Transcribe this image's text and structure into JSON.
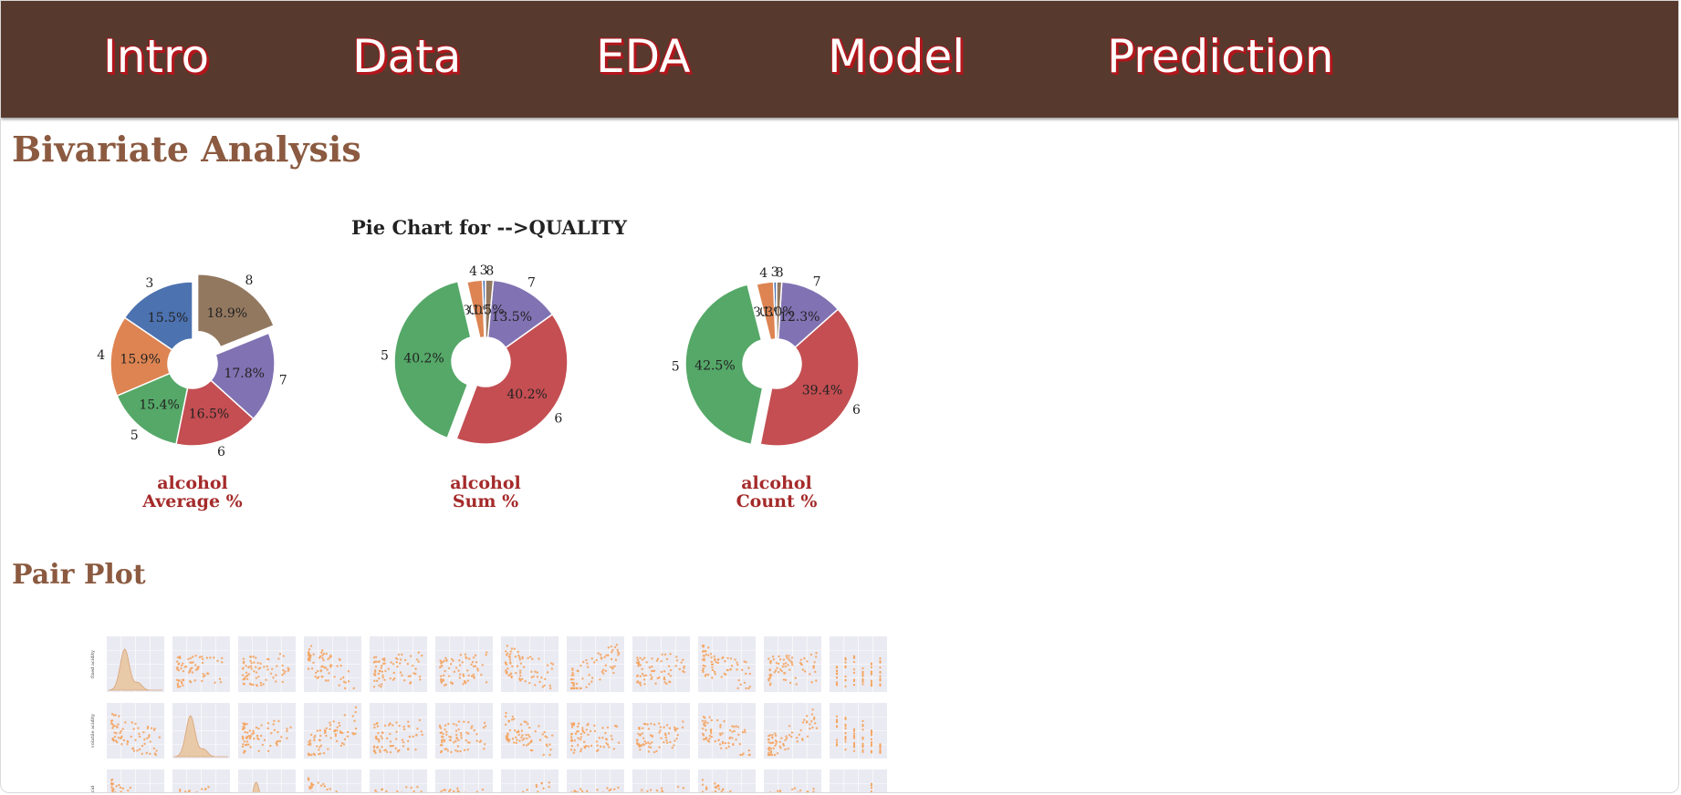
{
  "nav": {
    "items": [
      {
        "label": "Intro"
      },
      {
        "label": "Data"
      },
      {
        "label": "EDA"
      },
      {
        "label": "Model"
      },
      {
        "label": "Prediction"
      }
    ]
  },
  "sections": {
    "bivariate_title": "Bivariate Analysis",
    "pair_plot_title": "Pair Plot"
  },
  "pie_suptitle": "Pie Chart for -->QUALITY",
  "colors": {
    "nav_bg": "#58392e",
    "text_shadow": "#b3151b",
    "section_title": "#8b5a40",
    "caption": "#a52a2a",
    "quality_3": "#4c72b0",
    "quality_4": "#dd8452",
    "quality_5": "#55a868",
    "quality_6": "#c44e52",
    "quality_7": "#8172b3",
    "quality_8": "#937860",
    "scatter_point": "#f4a460",
    "panel_bg": "#eaeaf2"
  },
  "chart_data": [
    {
      "type": "pie",
      "caption_line1": "alcohol",
      "caption_line2": "Average %",
      "categories": [
        "3",
        "4",
        "5",
        "6",
        "7",
        "8"
      ],
      "values": [
        15.5,
        15.9,
        15.4,
        16.5,
        17.8,
        18.9
      ],
      "labels": [
        "15.5%",
        "15.9%",
        "15.4%",
        "16.5%",
        "17.8%",
        "18.9%"
      ],
      "explode_max": true
    },
    {
      "type": "pie",
      "caption_line1": "alcohol",
      "caption_line2": "Sum %",
      "categories": [
        "3",
        "4",
        "5",
        "6",
        "7",
        "8"
      ],
      "values": [
        0.6,
        3.0,
        40.2,
        40.2,
        13.5,
        1.5
      ],
      "labels": [
        "0.6%",
        "3.0%",
        "40.2%",
        "40.2%",
        "13.5%",
        "1.5%"
      ],
      "explode_max": true
    },
    {
      "type": "pie",
      "caption_line1": "alcohol",
      "caption_line2": "Count %",
      "categories": [
        "3",
        "4",
        "5",
        "6",
        "7",
        "8"
      ],
      "values": [
        0.6,
        3.3,
        42.5,
        39.4,
        12.3,
        1.0
      ],
      "labels": [
        "0.6%",
        "3.3%",
        "42.5%",
        "39.4%",
        "12.3%",
        "1.0%"
      ],
      "explode_max": true
    },
    {
      "type": "scatter",
      "kind": "pair-plot-matrix",
      "visible_rows": 3,
      "columns": 12,
      "row_labels": [
        "fixed acidity",
        "volatile acidity",
        "citric acid"
      ],
      "diagonal": "kde"
    }
  ]
}
